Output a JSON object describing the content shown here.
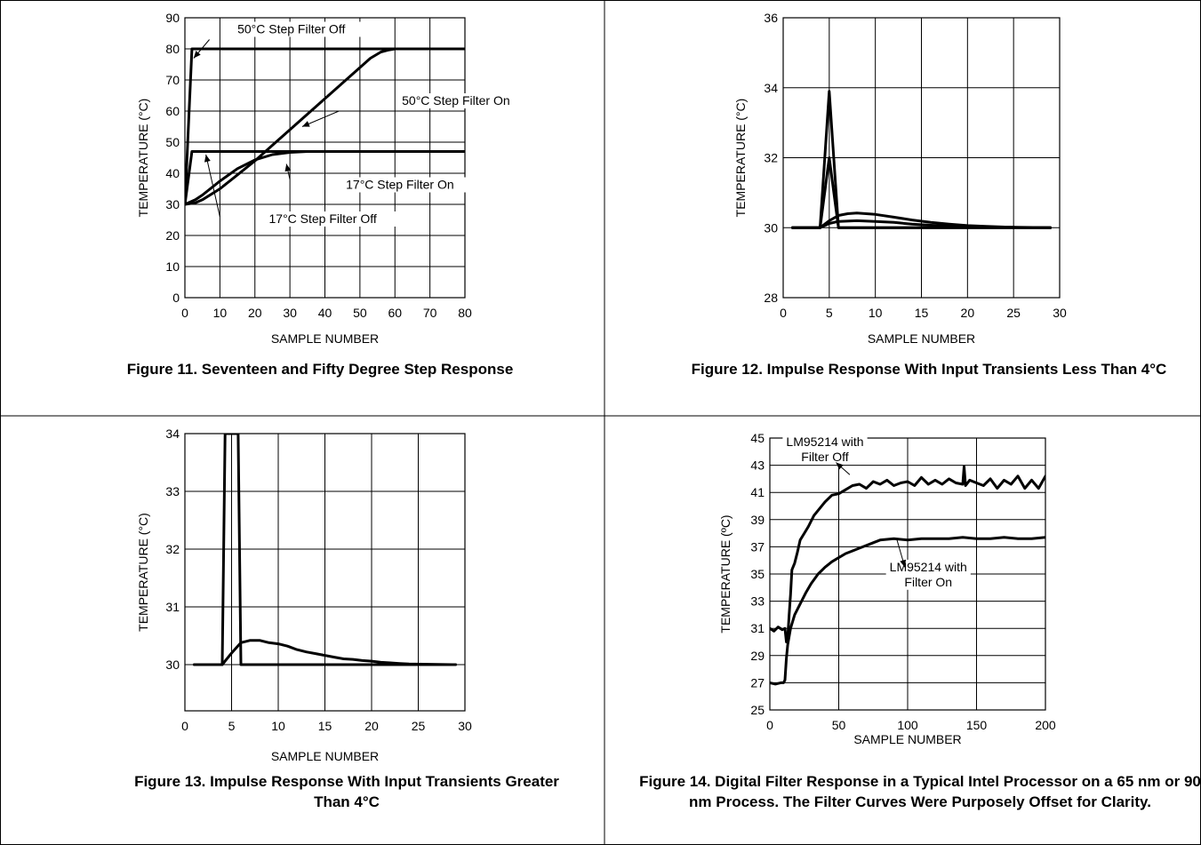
{
  "chart_data": [
    {
      "type": "line",
      "caption": "Figure 11. Seventeen and Fifty Degree Step Response",
      "xlabel": "SAMPLE NUMBER",
      "ylabel": "TEMPERATURE (°C)",
      "xlim": [
        0,
        80
      ],
      "ylim": [
        0,
        90
      ],
      "xticks": [
        0,
        10,
        20,
        30,
        40,
        50,
        60,
        70,
        80
      ],
      "yticks": [
        0,
        10,
        20,
        30,
        40,
        50,
        60,
        70,
        80,
        90
      ],
      "grid": true,
      "series": [
        {
          "name": "50°C Step Filter Off",
          "x": [
            0,
            2,
            80
          ],
          "y": [
            30,
            80,
            80
          ]
        },
        {
          "name": "50°C Step Filter On",
          "x": [
            0,
            3,
            5,
            10,
            15,
            20,
            25,
            30,
            35,
            40,
            45,
            50,
            53,
            56,
            58,
            60,
            65,
            80
          ],
          "y": [
            30,
            30.5,
            31.5,
            35,
            39.5,
            44,
            49,
            54,
            59,
            64,
            69,
            74,
            77,
            79,
            79.6,
            80,
            80,
            80
          ]
        },
        {
          "name": "17°C Step Filter Off",
          "x": [
            0,
            2,
            80
          ],
          "y": [
            30,
            47,
            47
          ]
        },
        {
          "name": "17°C Step Filter On",
          "x": [
            0,
            3,
            5,
            10,
            15,
            20,
            25,
            30,
            35,
            40,
            80
          ],
          "y": [
            30,
            31.5,
            33,
            37.5,
            41.5,
            44.3,
            46,
            46.7,
            47,
            47,
            47
          ]
        }
      ],
      "annotations": [
        {
          "text": "50°C Step Filter Off",
          "x": 15,
          "y": 85
        },
        {
          "text": "50°C Step Filter On",
          "x": 62,
          "y": 62
        },
        {
          "text": "17°C Step Filter On",
          "x": 46,
          "y": 35
        },
        {
          "text": "17°C Step Filter Off",
          "x": 24,
          "y": 24
        }
      ]
    },
    {
      "type": "line",
      "caption": "Figure 12. Impulse Response With Input Transients Less Than 4°C",
      "xlabel": "SAMPLE NUMBER",
      "ylabel": "TEMPERATURE (°C)",
      "xlim": [
        0,
        30
      ],
      "ylim": [
        28,
        36
      ],
      "xticks": [
        0,
        5,
        10,
        15,
        20,
        25,
        30
      ],
      "yticks": [
        28,
        30,
        32,
        34,
        36
      ],
      "grid": true,
      "series": [
        {
          "x": [
            1,
            4,
            5,
            6,
            29
          ],
          "y": [
            30,
            30,
            33.9,
            30,
            30
          ]
        },
        {
          "x": [
            1,
            4,
            5,
            6,
            29
          ],
          "y": [
            30,
            30,
            32,
            30,
            30
          ]
        },
        {
          "x": [
            1,
            4,
            5,
            6,
            7,
            8,
            10,
            12,
            14,
            16,
            18,
            20,
            22,
            24,
            29
          ],
          "y": [
            30,
            30,
            30.2,
            30.35,
            30.4,
            30.42,
            30.38,
            30.3,
            30.22,
            30.15,
            30.1,
            30.06,
            30.04,
            30.02,
            30
          ]
        },
        {
          "x": [
            1,
            4,
            5,
            6,
            8,
            10,
            12,
            14,
            16,
            18,
            20,
            22,
            24,
            29
          ],
          "y": [
            30,
            30,
            30.12,
            30.18,
            30.2,
            30.18,
            30.15,
            30.1,
            30.07,
            30.05,
            30.03,
            30.02,
            30.01,
            30
          ]
        }
      ]
    },
    {
      "type": "line",
      "caption": "Figure 13. Impulse Response With Input Transients Greater Than 4°C",
      "xlabel": "SAMPLE NUMBER",
      "ylabel": "TEMPERATURE (°C)",
      "xlim": [
        0,
        30
      ],
      "ylim": [
        29.2,
        34
      ],
      "xticks": [
        0,
        5,
        10,
        15,
        20,
        25,
        30
      ],
      "yticks": [
        30,
        31,
        32,
        33,
        34
      ],
      "grid": true,
      "series": [
        {
          "x": [
            1,
            4,
            4.3,
            5,
            5.7,
            6,
            29
          ],
          "y": [
            30,
            30,
            34,
            34,
            34,
            30,
            30
          ]
        },
        {
          "x": [
            1,
            4,
            5,
            6,
            7,
            8,
            9,
            10,
            11,
            12,
            13,
            14,
            15,
            16,
            17,
            18,
            19,
            20,
            21,
            22,
            23,
            24,
            29
          ],
          "y": [
            30,
            30,
            30.2,
            30.38,
            30.42,
            30.42,
            30.38,
            30.36,
            30.32,
            30.26,
            30.22,
            30.19,
            30.16,
            30.13,
            30.1,
            30.09,
            30.07,
            30.06,
            30.04,
            30.03,
            30.02,
            30.01,
            30
          ]
        }
      ]
    },
    {
      "type": "line",
      "caption": "Figure 14. Digital Filter Response in a Typical Intel Processor on a 65 nm or 90 nm Process. The Filter Curves Were Purposely Offset for Clarity.",
      "xlabel": "SAMPLE NUMBER",
      "ylabel": "TEMPERATURE (ºC)",
      "xlim": [
        0,
        200
      ],
      "ylim": [
        25,
        45
      ],
      "xticks": [
        0,
        50,
        100,
        150,
        200
      ],
      "yticks": [
        25,
        27,
        29,
        31,
        33,
        35,
        37,
        39,
        41,
        43,
        45
      ],
      "grid": true,
      "series": [
        {
          "name": "LM95214 with Filter Off",
          "x": [
            0,
            3,
            6,
            9,
            11,
            12,
            13,
            14,
            15,
            16,
            18,
            20,
            22,
            25,
            28,
            32,
            36,
            40,
            45,
            50,
            55,
            60,
            65,
            70,
            75,
            80,
            85,
            90,
            95,
            100,
            105,
            110,
            115,
            120,
            125,
            130,
            135,
            140,
            141,
            142,
            145,
            150,
            155,
            160,
            165,
            170,
            175,
            180,
            185,
            190,
            195,
            200
          ],
          "y": [
            31,
            30.8,
            31.1,
            30.9,
            31,
            30,
            30.3,
            32,
            33.5,
            35.3,
            35.8,
            36.6,
            37.5,
            38,
            38.5,
            39.3,
            39.8,
            40.3,
            40.8,
            40.9,
            41.2,
            41.5,
            41.6,
            41.3,
            41.8,
            41.6,
            41.9,
            41.5,
            41.7,
            41.8,
            41.5,
            42.1,
            41.6,
            41.9,
            41.6,
            42,
            41.7,
            41.6,
            42.9,
            41.5,
            41.9,
            41.7,
            41.5,
            42,
            41.3,
            41.9,
            41.6,
            42.2,
            41.3,
            41.9,
            41.3,
            42.2
          ]
        },
        {
          "name": "LM95214 with Filter On",
          "x": [
            0,
            4,
            8,
            10,
            11,
            12,
            13,
            15,
            18,
            22,
            26,
            30,
            35,
            40,
            45,
            50,
            55,
            60,
            65,
            70,
            75,
            80,
            90,
            100,
            110,
            120,
            130,
            140,
            150,
            160,
            170,
            180,
            190,
            200
          ],
          "y": [
            27,
            26.9,
            27,
            27,
            27.2,
            28.8,
            29.8,
            31,
            32,
            32.8,
            33.6,
            34.3,
            35,
            35.5,
            35.9,
            36.2,
            36.5,
            36.7,
            36.9,
            37.1,
            37.3,
            37.5,
            37.6,
            37.5,
            37.6,
            37.6,
            37.6,
            37.7,
            37.6,
            37.6,
            37.7,
            37.6,
            37.6,
            37.7
          ]
        }
      ],
      "annotations": [
        {
          "text": "LM95214 with",
          "x": 40,
          "y": 44.4
        },
        {
          "text": "Filter Off",
          "x": 40,
          "y": 43.3
        },
        {
          "text": "LM95214 with",
          "x": 115,
          "y": 35.2
        },
        {
          "text": "Filter On",
          "x": 115,
          "y": 34.1
        }
      ]
    }
  ]
}
